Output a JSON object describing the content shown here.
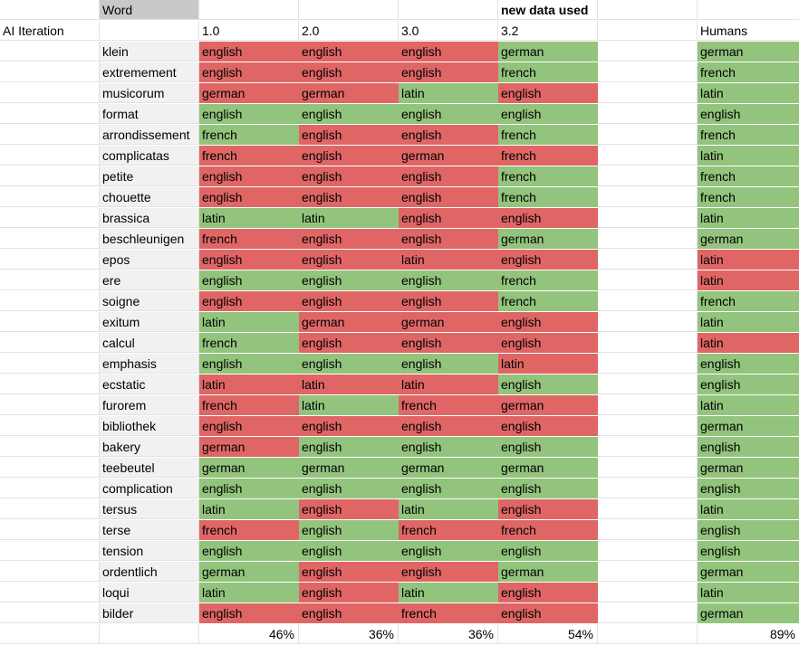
{
  "header": {
    "word_label": "Word",
    "new_data_label": "new data used"
  },
  "columns": {
    "row_label": "AI Iteration",
    "versions": [
      "1.0",
      "2.0",
      "3.0",
      "3.2"
    ],
    "humans": "Humans"
  },
  "colors": {
    "correct": "#93c47d",
    "incorrect": "#e06666",
    "word_column": "#f1f1f1",
    "word_header": "#c9c9c9"
  },
  "rows": [
    {
      "word": "klein",
      "v1": "english",
      "c1": 0,
      "v2": "english",
      "c2": 0,
      "v3": "english",
      "c3": 0,
      "v4": "german",
      "c4": 1,
      "human": "german",
      "ch": 1
    },
    {
      "word": "extremement",
      "v1": "english",
      "c1": 0,
      "v2": "english",
      "c2": 0,
      "v3": "english",
      "c3": 0,
      "v4": "french",
      "c4": 1,
      "human": "french",
      "ch": 1
    },
    {
      "word": "musicorum",
      "v1": "german",
      "c1": 0,
      "v2": "german",
      "c2": 0,
      "v3": "latin",
      "c3": 1,
      "v4": "english",
      "c4": 0,
      "human": "latin",
      "ch": 1
    },
    {
      "word": "format",
      "v1": "english",
      "c1": 1,
      "v2": "english",
      "c2": 1,
      "v3": "english",
      "c3": 1,
      "v4": "english",
      "c4": 1,
      "human": "english",
      "ch": 1
    },
    {
      "word": "arrondissement",
      "v1": "french",
      "c1": 1,
      "v2": "english",
      "c2": 0,
      "v3": "english",
      "c3": 0,
      "v4": "french",
      "c4": 1,
      "human": "french",
      "ch": 1
    },
    {
      "word": "complicatas",
      "v1": "french",
      "c1": 0,
      "v2": "english",
      "c2": 0,
      "v3": "german",
      "c3": 0,
      "v4": "french",
      "c4": 0,
      "human": "latin",
      "ch": 1
    },
    {
      "word": "petite",
      "v1": "english",
      "c1": 0,
      "v2": "english",
      "c2": 0,
      "v3": "english",
      "c3": 0,
      "v4": "french",
      "c4": 1,
      "human": "french",
      "ch": 1
    },
    {
      "word": "chouette",
      "v1": "english",
      "c1": 0,
      "v2": "english",
      "c2": 0,
      "v3": "english",
      "c3": 0,
      "v4": "french",
      "c4": 1,
      "human": "french",
      "ch": 1
    },
    {
      "word": "brassica",
      "v1": "latin",
      "c1": 1,
      "v2": "latin",
      "c2": 1,
      "v3": "english",
      "c3": 0,
      "v4": "english",
      "c4": 0,
      "human": "latin",
      "ch": 1
    },
    {
      "word": "beschleunigen",
      "v1": "french",
      "c1": 0,
      "v2": "english",
      "c2": 0,
      "v3": "english",
      "c3": 0,
      "v4": "german",
      "c4": 1,
      "human": "german",
      "ch": 1
    },
    {
      "word": "epos",
      "v1": "english",
      "c1": 0,
      "v2": "english",
      "c2": 0,
      "v3": "latin",
      "c3": 0,
      "v4": "english",
      "c4": 0,
      "human": "latin",
      "ch": 0
    },
    {
      "word": "ere",
      "v1": "english",
      "c1": 1,
      "v2": "english",
      "c2": 1,
      "v3": "english",
      "c3": 1,
      "v4": "french",
      "c4": 1,
      "human": "latin",
      "ch": 0
    },
    {
      "word": "soigne",
      "v1": "english",
      "c1": 0,
      "v2": "english",
      "c2": 0,
      "v3": "english",
      "c3": 0,
      "v4": "french",
      "c4": 1,
      "human": "french",
      "ch": 1
    },
    {
      "word": "exitum",
      "v1": "latin",
      "c1": 1,
      "v2": "german",
      "c2": 0,
      "v3": "german",
      "c3": 0,
      "v4": "english",
      "c4": 0,
      "human": "latin",
      "ch": 1
    },
    {
      "word": "calcul",
      "v1": "french",
      "c1": 1,
      "v2": "english",
      "c2": 0,
      "v3": "english",
      "c3": 0,
      "v4": "english",
      "c4": 0,
      "human": "latin",
      "ch": 0
    },
    {
      "word": "emphasis",
      "v1": "english",
      "c1": 1,
      "v2": "english",
      "c2": 1,
      "v3": "english",
      "c3": 1,
      "v4": "latin",
      "c4": 0,
      "human": "english",
      "ch": 1
    },
    {
      "word": "ecstatic",
      "v1": "latin",
      "c1": 0,
      "v2": "latin",
      "c2": 0,
      "v3": "latin",
      "c3": 0,
      "v4": "english",
      "c4": 1,
      "human": "english",
      "ch": 1
    },
    {
      "word": "furorem",
      "v1": "french",
      "c1": 0,
      "v2": "latin",
      "c2": 1,
      "v3": "french",
      "c3": 0,
      "v4": "german",
      "c4": 0,
      "human": "latin",
      "ch": 1
    },
    {
      "word": "bibliothek",
      "v1": "english",
      "c1": 0,
      "v2": "english",
      "c2": 0,
      "v3": "english",
      "c3": 0,
      "v4": "english",
      "c4": 0,
      "human": "german",
      "ch": 1
    },
    {
      "word": "bakery",
      "v1": "german",
      "c1": 0,
      "v2": "english",
      "c2": 1,
      "v3": "english",
      "c3": 1,
      "v4": "english",
      "c4": 1,
      "human": "english",
      "ch": 1
    },
    {
      "word": "teebeutel",
      "v1": "german",
      "c1": 1,
      "v2": "german",
      "c2": 1,
      "v3": "german",
      "c3": 1,
      "v4": "german",
      "c4": 1,
      "human": "german",
      "ch": 1
    },
    {
      "word": "complication",
      "v1": "english",
      "c1": 1,
      "v2": "english",
      "c2": 1,
      "v3": "english",
      "c3": 1,
      "v4": "english",
      "c4": 1,
      "human": "english",
      "ch": 1
    },
    {
      "word": "tersus",
      "v1": "latin",
      "c1": 1,
      "v2": "english",
      "c2": 0,
      "v3": "latin",
      "c3": 1,
      "v4": "english",
      "c4": 0,
      "human": "latin",
      "ch": 1
    },
    {
      "word": "terse",
      "v1": "french",
      "c1": 0,
      "v2": "english",
      "c2": 1,
      "v3": "french",
      "c3": 0,
      "v4": "french",
      "c4": 0,
      "human": "english",
      "ch": 1
    },
    {
      "word": "tension",
      "v1": "english",
      "c1": 1,
      "v2": "english",
      "c2": 1,
      "v3": "english",
      "c3": 1,
      "v4": "english",
      "c4": 1,
      "human": "english",
      "ch": 1
    },
    {
      "word": "ordentlich",
      "v1": "german",
      "c1": 1,
      "v2": "english",
      "c2": 0,
      "v3": "english",
      "c3": 0,
      "v4": "german",
      "c4": 1,
      "human": "german",
      "ch": 1
    },
    {
      "word": "loqui",
      "v1": "latin",
      "c1": 1,
      "v2": "english",
      "c2": 0,
      "v3": "latin",
      "c3": 1,
      "v4": "english",
      "c4": 0,
      "human": "latin",
      "ch": 1
    },
    {
      "word": "bilder",
      "v1": "english",
      "c1": 0,
      "v2": "english",
      "c2": 0,
      "v3": "french",
      "c3": 0,
      "v4": "english",
      "c4": 0,
      "human": "german",
      "ch": 1
    }
  ],
  "totals": {
    "v1": "46%",
    "v2": "36%",
    "v3": "36%",
    "v4": "54%",
    "human": "89%"
  }
}
